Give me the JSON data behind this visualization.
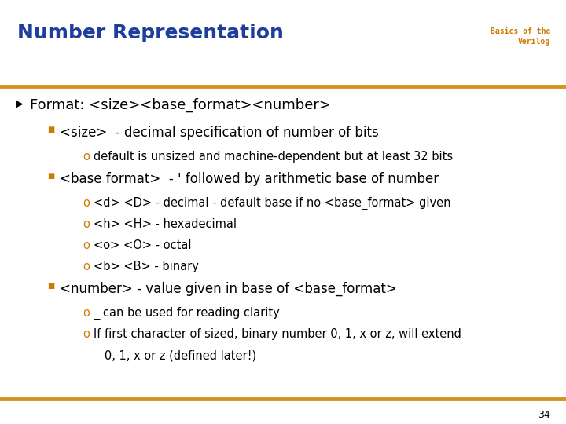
{
  "title": "Number Representation",
  "subtitle_line1": "Basics of the",
  "subtitle_line2": "Verilog",
  "title_color": "#1F3E9B",
  "subtitle_color": "#CC7A00",
  "bg_color": "#FFFFFF",
  "line_color": "#D4921E",
  "bullet_color_square": "#CC7A00",
  "bullet_color_o": "#CC7A00",
  "text_color": "#000000",
  "page_number": "34",
  "content": [
    {
      "level": 0,
      "text": "Format: <size><base_format><number>",
      "type": "arrow"
    },
    {
      "level": 1,
      "text": "<size>  - decimal specification of number of bits",
      "type": "square"
    },
    {
      "level": 2,
      "text": "default is unsized and machine-dependent but at least 32 bits",
      "type": "o_bullet"
    },
    {
      "level": 1,
      "text": "<base format>  - ' followed by arithmetic base of number",
      "type": "square"
    },
    {
      "level": 2,
      "text": "<d> <D> - decimal - default base if no <base_format> given",
      "type": "o_bullet"
    },
    {
      "level": 2,
      "text": "<h> <H> - hexadecimal",
      "type": "o_bullet"
    },
    {
      "level": 2,
      "text": "<o> <O> - octal",
      "type": "o_bullet"
    },
    {
      "level": 2,
      "text": "<b> <B> - binary",
      "type": "o_bullet"
    },
    {
      "level": 1,
      "text": "<number> - value given in base of <base_format>",
      "type": "square"
    },
    {
      "level": 2,
      "text": "_ can be used for reading clarity",
      "type": "o_bullet"
    },
    {
      "level": 2,
      "text": "If first character of sized, binary number 0, 1, x or z, will extend",
      "type": "o_bullet"
    },
    {
      "level": 2,
      "text": "   0, 1, x or z (defined later!)",
      "type": "plain_cont"
    }
  ]
}
